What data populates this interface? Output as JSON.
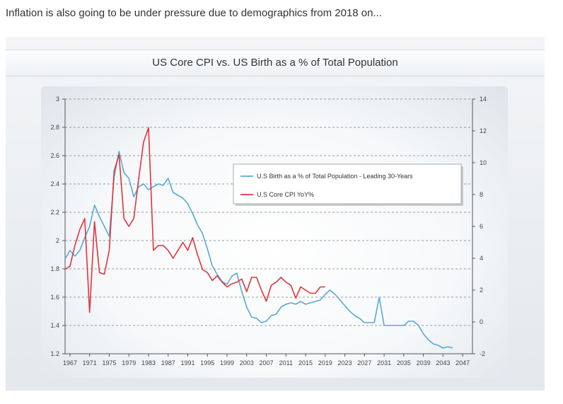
{
  "headline": "Inflation is also going to be under pressure due to demographics from 2018 on...",
  "chart_data": {
    "type": "line",
    "title": "US Core CPI vs. US Birth as a % of Total Population",
    "grid": true,
    "legend_position": "center-right",
    "x_range": [
      1966,
      2049
    ],
    "x_ticks": [
      1967,
      1971,
      1975,
      1979,
      1983,
      1987,
      1991,
      1995,
      1999,
      2003,
      2007,
      2011,
      2015,
      2019,
      2023,
      2027,
      2031,
      2035,
      2039,
      2043,
      2047
    ],
    "y_left": {
      "range": [
        1.2,
        3.0
      ],
      "ticks": [
        "1.2",
        "1.4",
        "1.6",
        "1.8",
        "2",
        "2.2",
        "2.4",
        "2.6",
        "2.8",
        "3"
      ]
    },
    "y_right": {
      "range": [
        -2,
        14
      ],
      "ticks": [
        "-2",
        "0",
        "2",
        "4",
        "6",
        "8",
        "10",
        "12",
        "14"
      ]
    },
    "colors": {
      "birth": "#5aa9d6",
      "cpi": "#e0353b"
    },
    "series": [
      {
        "name": "U.S Birth as a % of Total Population - Leading 30-Years",
        "axis": "left",
        "x": [
          1966,
          1967,
          1968,
          1969,
          1970,
          1971,
          1972,
          1973,
          1974,
          1975,
          1976,
          1977,
          1978,
          1979,
          1980,
          1981,
          1982,
          1983,
          1984,
          1985,
          1986,
          1987,
          1988,
          1989,
          1990,
          1991,
          1992,
          1993,
          1994,
          1995,
          1996,
          1997,
          1998,
          1999,
          2000,
          2001,
          2002,
          2003,
          2004,
          2005,
          2006,
          2007,
          2008,
          2009,
          2010,
          2011,
          2012,
          2013,
          2014,
          2015,
          2016,
          2017,
          2018,
          2019,
          2020,
          2021,
          2022,
          2023,
          2024,
          2025,
          2026,
          2027,
          2028,
          2029,
          2030,
          2031,
          2032,
          2033,
          2034,
          2035,
          2036,
          2037,
          2038,
          2039,
          2040,
          2041,
          2042,
          2043,
          2044,
          2045
        ],
        "values": [
          1.87,
          1.93,
          1.89,
          1.93,
          2.02,
          2.1,
          2.25,
          2.17,
          2.1,
          2.03,
          2.45,
          2.63,
          2.48,
          2.44,
          2.31,
          2.38,
          2.4,
          2.36,
          2.38,
          2.4,
          2.39,
          2.44,
          2.34,
          2.32,
          2.3,
          2.26,
          2.19,
          2.11,
          2.05,
          1.94,
          1.82,
          1.76,
          1.71,
          1.69,
          1.75,
          1.77,
          1.64,
          1.53,
          1.46,
          1.45,
          1.42,
          1.43,
          1.47,
          1.48,
          1.53,
          1.55,
          1.56,
          1.55,
          1.57,
          1.55,
          1.56,
          1.57,
          1.58,
          1.62,
          1.65,
          1.62,
          1.58,
          1.54,
          1.5,
          1.47,
          1.45,
          1.42,
          1.42,
          1.42,
          1.6,
          1.4,
          1.4,
          1.4,
          1.4,
          1.4,
          1.43,
          1.43,
          1.4,
          1.34,
          1.3,
          1.27,
          1.26,
          1.24,
          1.25,
          1.24
        ]
      },
      {
        "name": "U.S Core CPI YoY%",
        "axis": "right",
        "x": [
          1966,
          1967,
          1968,
          1969,
          1970,
          1971,
          1972,
          1973,
          1974,
          1975,
          1976,
          1977,
          1978,
          1979,
          1980,
          1981,
          1982,
          1983,
          1984,
          1985,
          1986,
          1987,
          1988,
          1989,
          1990,
          1991,
          1992,
          1993,
          1994,
          1995,
          1996,
          1997,
          1998,
          1999,
          2000,
          2001,
          2002,
          2003,
          2004,
          2005,
          2006,
          2007,
          2008,
          2009,
          2010,
          2011,
          2012,
          2013,
          2014,
          2015,
          2016,
          2017,
          2018,
          2019
        ],
        "values": [
          3.3,
          3.5,
          4.8,
          5.8,
          6.5,
          0.6,
          6.3,
          3.1,
          3.0,
          4.5,
          9.5,
          10.5,
          6.5,
          6.0,
          6.5,
          9.0,
          11.3,
          12.2,
          4.5,
          4.8,
          4.8,
          4.5,
          4.0,
          4.5,
          5.0,
          4.5,
          5.3,
          4.2,
          3.3,
          3.1,
          2.6,
          2.9,
          2.5,
          2.2,
          2.4,
          2.5,
          2.7,
          1.9,
          2.8,
          2.8,
          2.0,
          1.3,
          2.3,
          2.5,
          2.8,
          2.5,
          2.3,
          1.5,
          2.2,
          2.0,
          1.8,
          1.8,
          2.2,
          2.2
        ]
      }
    ]
  }
}
